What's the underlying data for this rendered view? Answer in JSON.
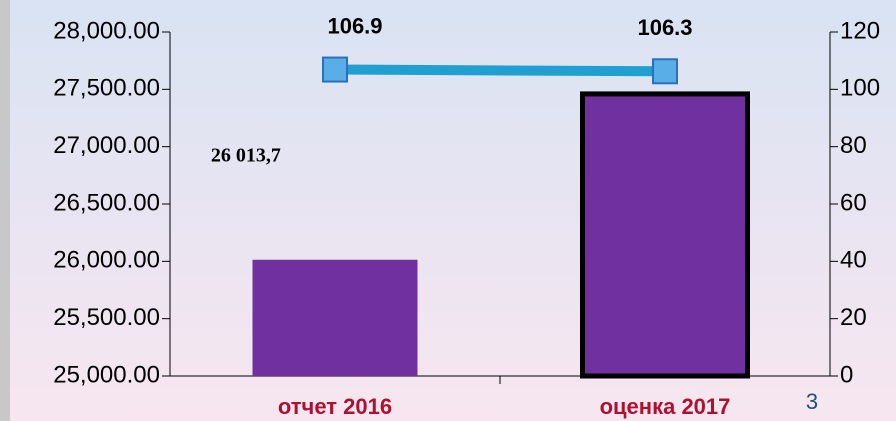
{
  "chart_data": {
    "type": "bar",
    "categories": [
      "отчет 2016",
      "оценка 2017"
    ],
    "series": [
      {
        "type": "bar",
        "color": "#7030a0",
        "values": [
          26013.7,
          27460
        ],
        "value_labels": [
          "26 013,7",
          null
        ]
      },
      {
        "type": "line",
        "axis": "y2",
        "color": "#1fa0d0",
        "values": [
          106.9,
          106.3
        ]
      }
    ],
    "ylim": [
      25000,
      28000
    ],
    "yticks": [
      {
        "value": 25000,
        "label": "25,000.00"
      },
      {
        "value": 25500,
        "label": "25,500.00"
      },
      {
        "value": 26000,
        "label": "26,000.00"
      },
      {
        "value": 26500,
        "label": "26,500.00"
      },
      {
        "value": 27000,
        "label": "27,000.00"
      },
      {
        "value": 27500,
        "label": "27,500.00"
      },
      {
        "value": 28000,
        "label": "28,000.00"
      }
    ],
    "y2lim": [
      0,
      120
    ],
    "y2ticks": [
      0,
      20,
      40,
      60,
      80,
      100,
      120
    ]
  },
  "page_number": "3"
}
